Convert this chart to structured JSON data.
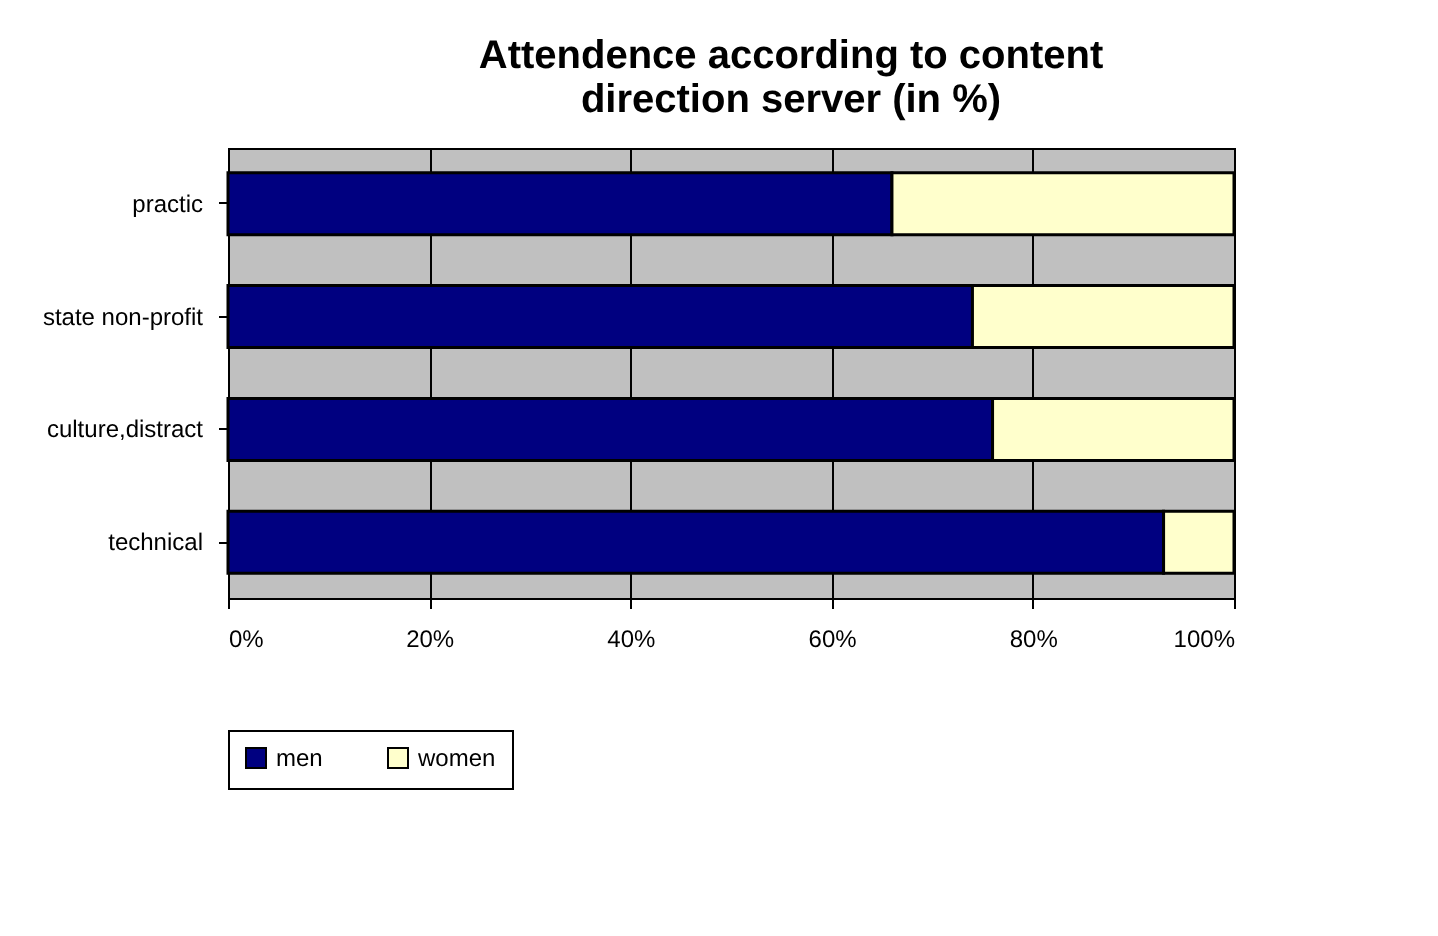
{
  "chart_data": {
    "type": "bar",
    "orientation": "horizontal",
    "stacked": true,
    "title": "Attendence according to content direction server (in %)",
    "categories": [
      "practic",
      "state non-profit",
      "culture,distract",
      "technical"
    ],
    "series": [
      {
        "name": "men",
        "color": "#000080",
        "values": [
          66,
          74,
          76,
          93
        ]
      },
      {
        "name": "women",
        "color": "#ffffcc",
        "values": [
          34,
          26,
          24,
          7
        ]
      }
    ],
    "xlim": [
      0,
      100
    ],
    "xticks": [
      {
        "value": 0,
        "label": "0%"
      },
      {
        "value": 20,
        "label": "20%"
      },
      {
        "value": 40,
        "label": "40%"
      },
      {
        "value": 60,
        "label": "60%"
      },
      {
        "value": 80,
        "label": "80%"
      },
      {
        "value": 100,
        "label": "100%"
      }
    ],
    "grid": "x",
    "legend": "bottom"
  }
}
